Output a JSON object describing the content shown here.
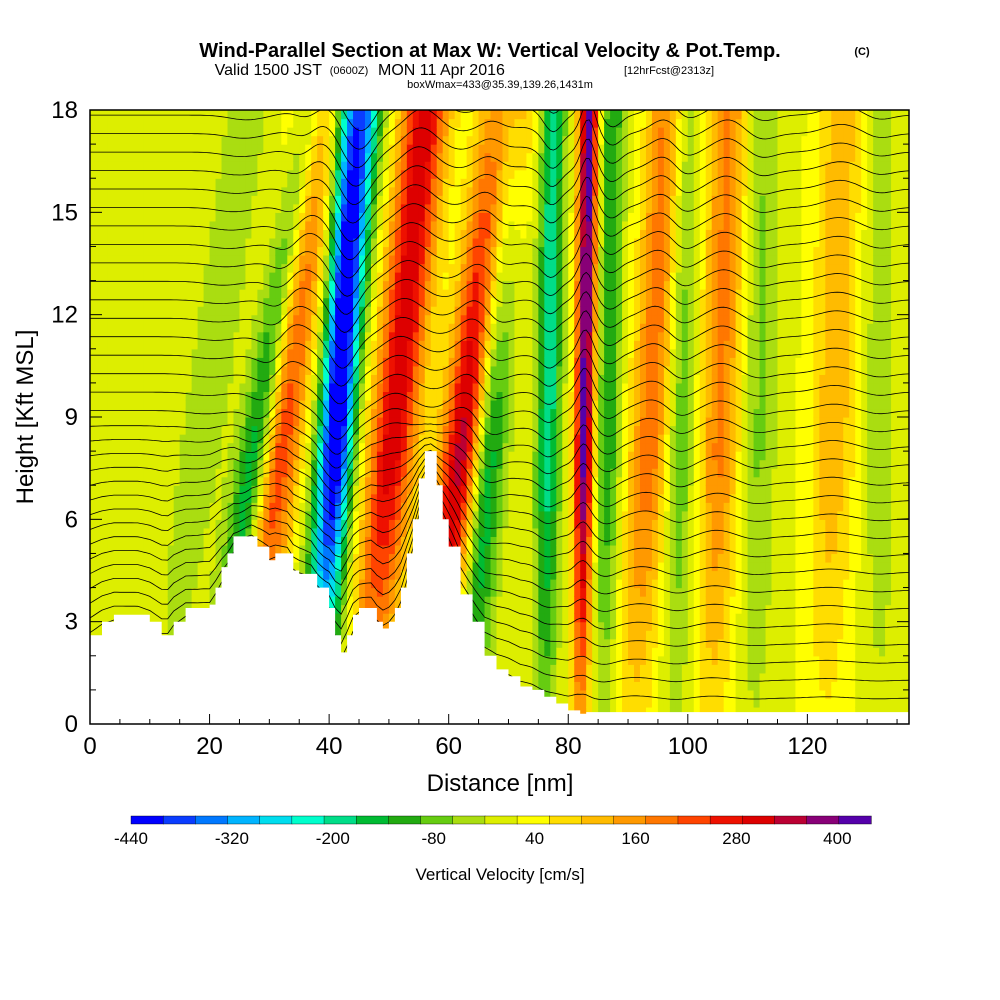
{
  "header": {
    "title_main": "Wind-Parallel Section at Max W: Vertical Velocity & Pot.Temp.",
    "title_copyright": "(C)",
    "valid_prefix": "Valid 1500 JST",
    "valid_utc": "(0600Z)",
    "valid_date": "MON 11 Apr 2016",
    "valid_fcst": "[12hrFcst@2313z]",
    "box_info": "boxWmax=433@35.39,139.26,1431m"
  },
  "chart_data": {
    "type": "heatmap",
    "xlabel": "Distance [nm]",
    "ylabel": "Height [Kft MSL]",
    "xlim": [
      0,
      137
    ],
    "ylim": [
      0,
      18
    ],
    "x_ticks": [
      0,
      20,
      40,
      60,
      80,
      100,
      120
    ],
    "x_tick_labels": [
      "0",
      "20",
      "40",
      "60",
      "80",
      "100",
      "120"
    ],
    "y_ticks": [
      0,
      3,
      6,
      9,
      12,
      15,
      18
    ],
    "y_tick_labels": [
      "0",
      "3",
      "6",
      "9",
      "12",
      "15",
      "18"
    ],
    "colorbar": {
      "label": "Vertical Velocity [cm/s]",
      "levels": [
        -440,
        -400,
        -360,
        -320,
        -280,
        -240,
        -200,
        -160,
        -120,
        -80,
        -40,
        0,
        40,
        80,
        120,
        160,
        200,
        240,
        280,
        320,
        360,
        400,
        440
      ],
      "tick_values": [
        -440,
        -320,
        -200,
        -80,
        40,
        160,
        280,
        400
      ],
      "tick_labels": [
        "-440",
        "-320",
        "-200",
        "-80",
        "40",
        "160",
        "280",
        "400"
      ],
      "colors": [
        "#0000ff",
        "#0a3cff",
        "#0078ff",
        "#00b4ff",
        "#00ddee",
        "#00ffcc",
        "#00dd88",
        "#00bb33",
        "#22aa11",
        "#66cc11",
        "#aadd11",
        "#ddee00",
        "#ffff00",
        "#ffdd00",
        "#ffbb00",
        "#ff9900",
        "#ff7700",
        "#ff4400",
        "#ee1100",
        "#dd0000",
        "#bb0033",
        "#880077",
        "#5500aa"
      ]
    },
    "velocity_bands": [
      {
        "x_base": 12,
        "tilt": 0.5,
        "amplitude": -60,
        "width": 4
      },
      {
        "x_base": 21,
        "tilt": 0.55,
        "amplitude": -300,
        "width": 3
      },
      {
        "x_base": 26,
        "tilt": 0.4,
        "amplitude": 300,
        "width": 4
      },
      {
        "x_base": 37,
        "tilt": 0.3,
        "amplitude": -380,
        "width": 3
      },
      {
        "x_base": 40,
        "tilt": 0.1,
        "amplitude": -150,
        "width": 2.5
      },
      {
        "x_base": 46,
        "tilt": 0.35,
        "amplitude": 320,
        "width": 4
      },
      {
        "x_base": 57,
        "tilt": 0.45,
        "amplitude": 400,
        "width": 4
      },
      {
        "x_base": 63,
        "tilt": 0.25,
        "amplitude": -300,
        "width": 3
      },
      {
        "x_base": 76,
        "tilt": 0.05,
        "amplitude": -220,
        "width": 2
      },
      {
        "x_base": 82,
        "tilt": 0.05,
        "amplitude": 433,
        "width": 1.6
      },
      {
        "x_base": 86,
        "tilt": 0.05,
        "amplitude": -150,
        "width": 2
      },
      {
        "x_base": 91,
        "tilt": 0.2,
        "amplitude": 200,
        "width": 3.5
      },
      {
        "x_base": 98,
        "tilt": 0.05,
        "amplitude": -120,
        "width": 2.5
      },
      {
        "x_base": 104,
        "tilt": 0.1,
        "amplitude": 180,
        "width": 3.5
      },
      {
        "x_base": 111,
        "tilt": 0.05,
        "amplitude": -80,
        "width": 3
      },
      {
        "x_base": 123,
        "tilt": 0.1,
        "amplitude": 120,
        "width": 4
      },
      {
        "x_base": 132,
        "tilt": 0.0,
        "amplitude": -60,
        "width": 3
      }
    ],
    "terrain": {
      "x": [
        0,
        2,
        4,
        5,
        8,
        10,
        12,
        13,
        14,
        16,
        18,
        20,
        21,
        22,
        23,
        24,
        26,
        27,
        28,
        30,
        31,
        33,
        34,
        35,
        37,
        38,
        40,
        41,
        42,
        43,
        44,
        45,
        47,
        48,
        49,
        50,
        51,
        52,
        53,
        54,
        55,
        56,
        57,
        58,
        59,
        60,
        62,
        64,
        66,
        68,
        70,
        72,
        74,
        76,
        78,
        80,
        82,
        83,
        84,
        137
      ],
      "height": [
        2.6,
        3.0,
        3.2,
        3.2,
        3.2,
        3.0,
        2.6,
        2.6,
        3.0,
        3.4,
        3.4,
        3.5,
        4.0,
        4.6,
        5.0,
        5.5,
        5.5,
        5.5,
        5.2,
        4.8,
        5.0,
        5.0,
        4.5,
        4.4,
        4.4,
        4.0,
        3.4,
        2.6,
        2.1,
        2.6,
        3.2,
        3.4,
        3.4,
        3.0,
        2.8,
        3.0,
        3.4,
        4.0,
        5.0,
        6.0,
        7.2,
        8.0,
        8.0,
        7.0,
        6.0,
        5.2,
        3.8,
        3.0,
        2.0,
        1.6,
        1.4,
        1.1,
        1.0,
        0.8,
        0.6,
        0.4,
        0.3,
        0.35,
        0.35,
        0.35
      ]
    },
    "theta_contour_count": 34
  }
}
